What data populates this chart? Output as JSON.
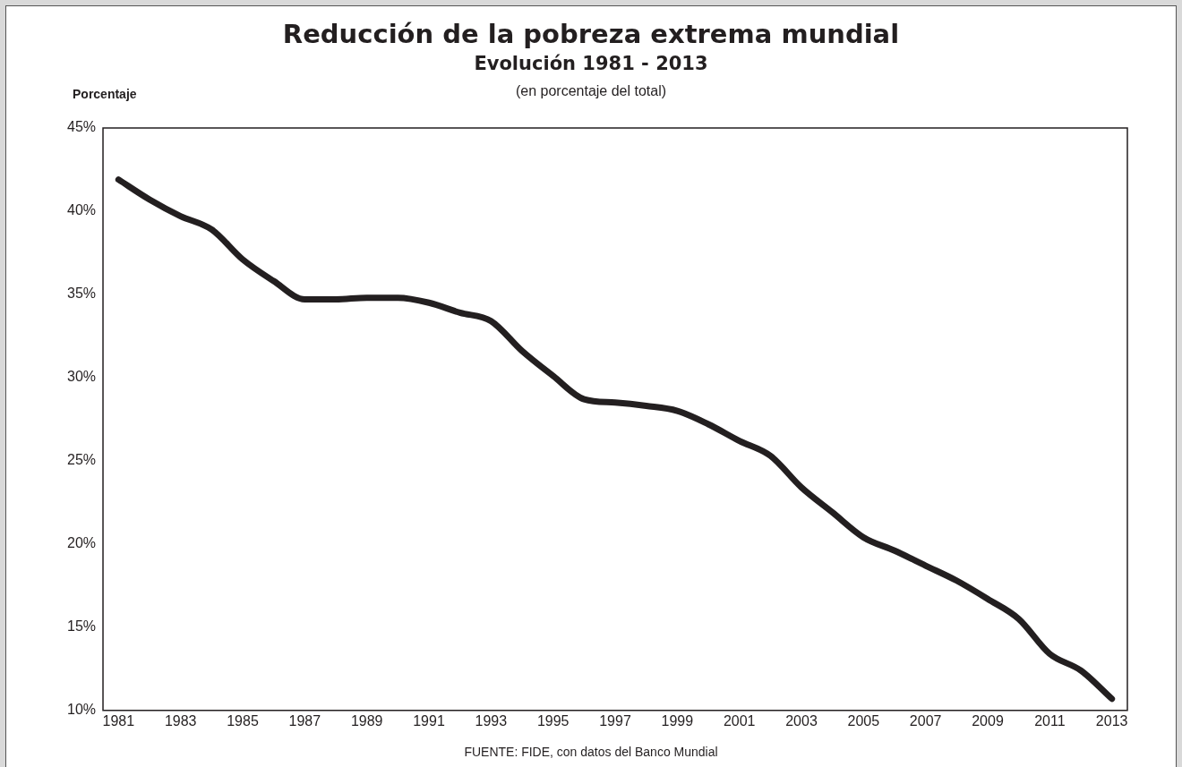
{
  "chart_data": {
    "type": "line",
    "title": "Reducción de la pobreza extrema mundial",
    "subtitle": "Evolución 1981 - 2013",
    "ylabel": "Porcentaje",
    "annotations": [
      "(en porcentaje del total)",
      "FUENTE: FIDE, con datos del Banco Mundial"
    ],
    "x": [
      1981,
      1982,
      1983,
      1984,
      1985,
      1986,
      1987,
      1988,
      1989,
      1990,
      1991,
      1992,
      1993,
      1994,
      1995,
      1996,
      1997,
      1998,
      1999,
      2000,
      2001,
      2002,
      2003,
      2004,
      2005,
      2006,
      2007,
      2008,
      2009,
      2010,
      2011,
      2012,
      2013
    ],
    "series": [
      {
        "color": "#231f20",
        "values": [
          41.9,
          40.7,
          39.7,
          38.9,
          37.1,
          35.8,
          34.7,
          34.7,
          34.8,
          34.8,
          34.5,
          33.9,
          33.4,
          31.6,
          30.1,
          28.7,
          28.5,
          28.3,
          28.0,
          27.2,
          26.2,
          25.3,
          23.4,
          21.9,
          20.4,
          19.6,
          18.7,
          17.8,
          16.7,
          15.5,
          13.4,
          12.4,
          10.7
        ]
      }
    ],
    "xlim": [
      1980.5,
      2013.5
    ],
    "xticks": [
      1981,
      1983,
      1985,
      1987,
      1989,
      1991,
      1993,
      1995,
      1997,
      1999,
      2001,
      2003,
      2005,
      2007,
      2009,
      2011,
      2013
    ],
    "ylim": [
      10,
      45
    ],
    "yticks": [
      {
        "value": 10,
        "label": "10%"
      },
      {
        "value": 15,
        "label": "15%"
      },
      {
        "value": 20,
        "label": "20%"
      },
      {
        "value": 25,
        "label": "25%"
      },
      {
        "value": 30,
        "label": "30%"
      },
      {
        "value": 35,
        "label": "35%"
      },
      {
        "value": 40,
        "label": "40%"
      },
      {
        "value": 45,
        "label": "45%"
      }
    ],
    "marker": "none"
  }
}
